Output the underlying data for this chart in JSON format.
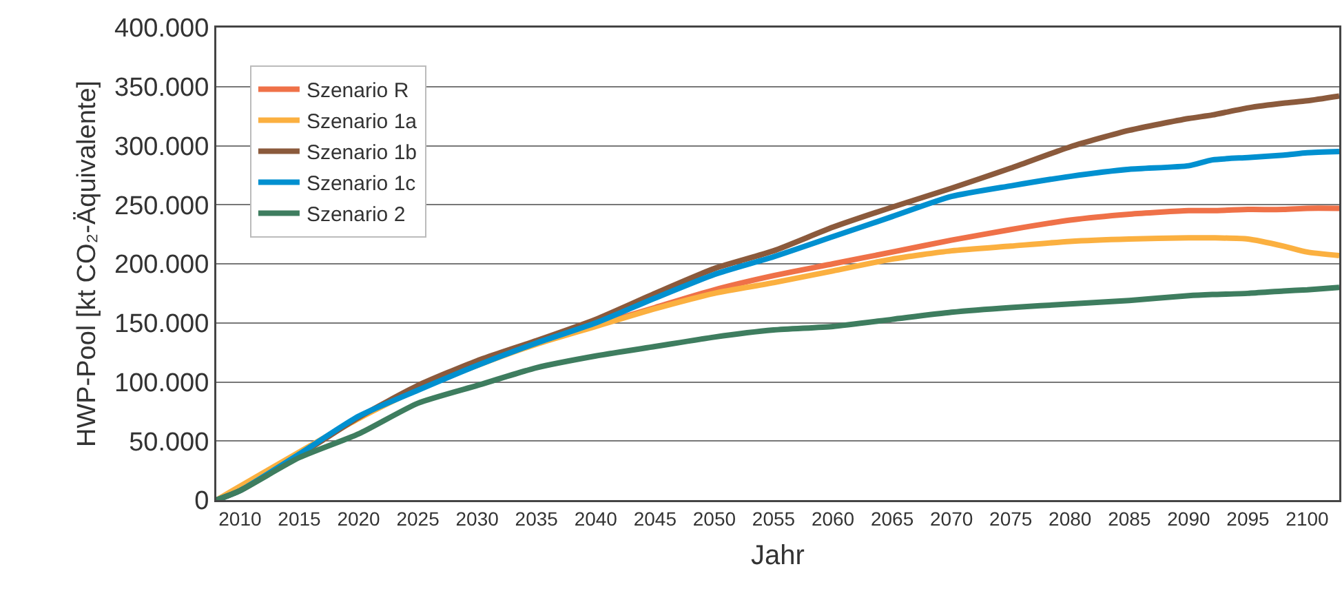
{
  "chart_data": {
    "type": "line",
    "xlabel": "Jahr",
    "ylabel": "HWP-Pool [kt CO₂-Äquivalente]",
    "x": [
      2008,
      2010,
      2015,
      2020,
      2025,
      2030,
      2035,
      2040,
      2045,
      2050,
      2055,
      2060,
      2065,
      2070,
      2075,
      2080,
      2085,
      2090,
      2092,
      2095,
      2098,
      2100,
      2102.7
    ],
    "series": [
      {
        "name": "Szenario R",
        "color": "#ef7148",
        "values": [
          0,
          8000,
          null,
          70000,
          95000,
          115000,
          133000,
          148000,
          163000,
          178000,
          190000,
          200000,
          210000,
          220000,
          229000,
          237000,
          242000,
          245000,
          245000,
          246000,
          246000,
          247000,
          247000
        ]
      },
      {
        "name": "Szenario 1a",
        "color": "#fbb040",
        "values": [
          0,
          null,
          null,
          69000,
          94000,
          114000,
          132000,
          147000,
          162000,
          175000,
          184000,
          194000,
          204000,
          211000,
          215000,
          219000,
          221000,
          222000,
          222000,
          221000,
          215000,
          210000,
          207000
        ]
      },
      {
        "name": "Szenario 1b",
        "color": "#8b5a3c",
        "values": [
          0,
          8000,
          38000,
          70000,
          97000,
          118000,
          135000,
          153000,
          175000,
          196000,
          211000,
          231000,
          248000,
          264000,
          281000,
          299000,
          313000,
          323000,
          326000,
          332000,
          336000,
          338000,
          342000
        ]
      },
      {
        "name": "Szenario 1c",
        "color": "#0090d0",
        "values": [
          0,
          8000,
          39000,
          71000,
          93000,
          114000,
          133000,
          150000,
          171000,
          191000,
          206000,
          223000,
          240000,
          257000,
          266000,
          274000,
          280000,
          283000,
          288000,
          290000,
          292000,
          294000,
          295000
        ]
      },
      {
        "name": "Szenario 2",
        "color": "#3e7d5f",
        "values": [
          0,
          8000,
          36000,
          56000,
          82000,
          97000,
          112000,
          122000,
          130000,
          138000,
          144000,
          147000,
          153000,
          159000,
          163000,
          166000,
          169000,
          173000,
          174000,
          175000,
          177000,
          178000,
          180000
        ]
      }
    ],
    "xlim": [
      2008,
      2102.7
    ],
    "ylim": [
      0,
      400000
    ],
    "xticks": [
      2010,
      2015,
      2020,
      2025,
      2030,
      2035,
      2040,
      2045,
      2050,
      2055,
      2060,
      2065,
      2070,
      2075,
      2080,
      2085,
      2090,
      2095,
      2100
    ],
    "yticks": [
      0,
      {
        "value": 50000,
        "label": "50.000"
      },
      {
        "value": 100000,
        "label": "100.000"
      },
      {
        "value": 150000,
        "label": "150.000"
      },
      {
        "value": 200000,
        "label": "200.000"
      },
      {
        "value": 250000,
        "label": "250.000"
      },
      {
        "value": 300000,
        "label": "300.000"
      },
      {
        "value": 350000,
        "label": "350.000"
      },
      {
        "value": 400000,
        "label": "400.000"
      }
    ],
    "grid": "y",
    "legend": "top left",
    "marker": "none",
    "line_style": "solid"
  }
}
